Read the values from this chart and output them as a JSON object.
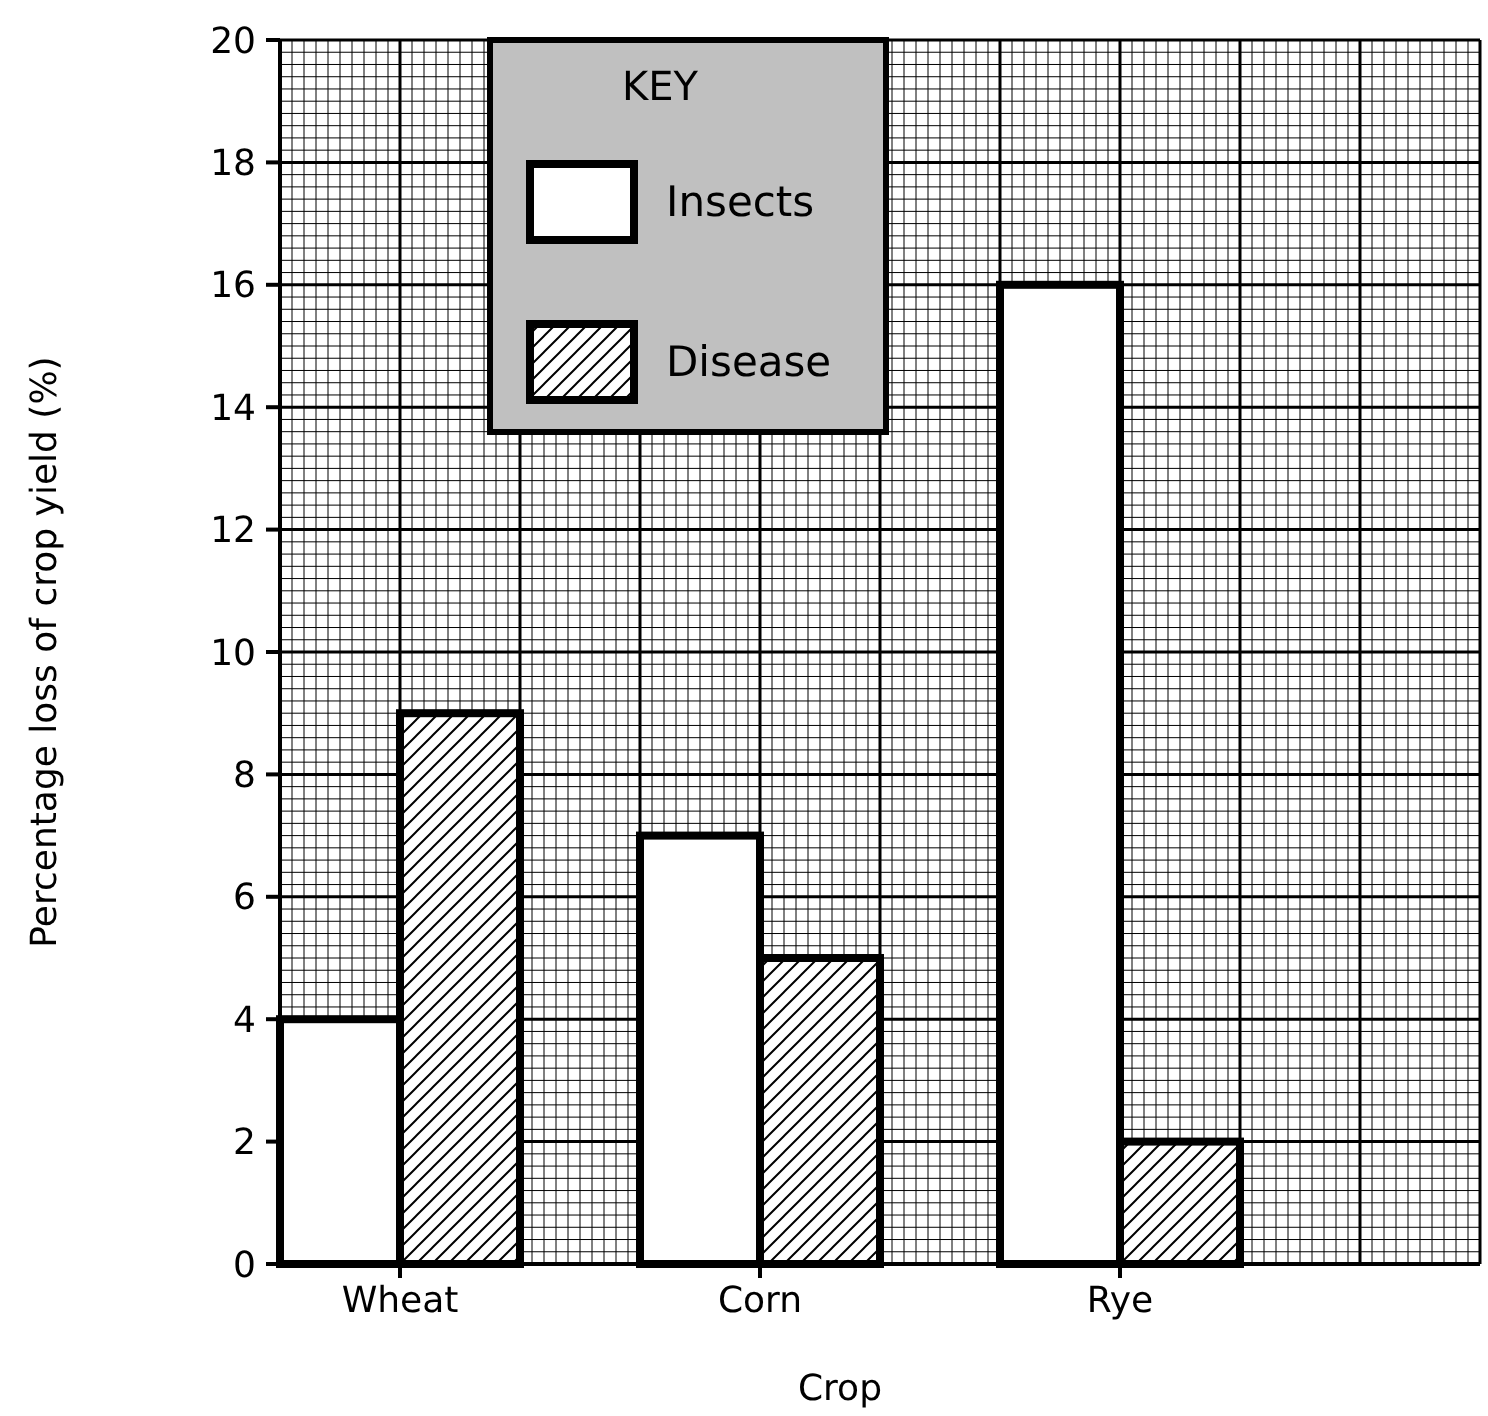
{
  "chart_data": {
    "type": "bar",
    "xlabel": "Crop",
    "ylabel": "Percentage loss of crop yield (%)",
    "legend_title": "KEY",
    "categories": [
      "Wheat",
      "Corn",
      "Rye"
    ],
    "series": [
      {
        "name": "Insects",
        "color": "#ffffff",
        "values": [
          4,
          7,
          16
        ]
      },
      {
        "name": "Disease",
        "color": "#000000",
        "values": [
          9,
          5,
          2
        ]
      }
    ],
    "ylim": [
      0,
      20
    ],
    "yticks": [
      0,
      2,
      4,
      6,
      8,
      10,
      12,
      14,
      16,
      18,
      20
    ],
    "grid": true,
    "legend": "top left"
  }
}
